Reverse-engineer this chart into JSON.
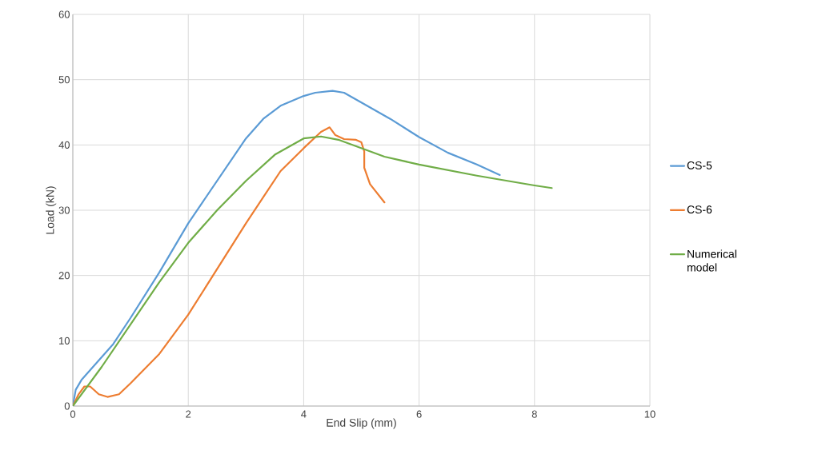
{
  "chart_data": {
    "type": "line",
    "xlabel": "End Slip (mm)",
    "ylabel": "Load (kN)",
    "xlim": [
      0,
      10
    ],
    "xticks": [
      0,
      2,
      4,
      6,
      8,
      10
    ],
    "ylim": [
      0,
      60
    ],
    "yticks": [
      0,
      10,
      20,
      30,
      40,
      50,
      60
    ],
    "grid": true,
    "legend": "right",
    "marker": "none",
    "line_style": "solid",
    "series": [
      {
        "name": "CS-5",
        "color": "#5b9bd5",
        "x": [
          0,
          0.05,
          0.15,
          0.5,
          0.7,
          1,
          1.5,
          2,
          2.5,
          3,
          3.3,
          3.6,
          4,
          4.2,
          4.5,
          4.7,
          5,
          5.5,
          6,
          6.5,
          7,
          7.4
        ],
        "values": [
          0,
          2.5,
          4,
          7.5,
          9.5,
          13.5,
          20.5,
          28,
          34.5,
          41,
          44,
          46,
          47.5,
          48,
          48.3,
          48,
          46.5,
          44,
          41.2,
          38.8,
          37,
          35.4
        ]
      },
      {
        "name": "CS-6",
        "color": "#ed7d31",
        "x": [
          0,
          0.1,
          0.2,
          0.3,
          0.45,
          0.6,
          0.8,
          1,
          1.5,
          2,
          2.5,
          3,
          3.3,
          3.6,
          4,
          4.3,
          4.45,
          4.55,
          4.7,
          4.9,
          5.0,
          5.05,
          5.05,
          5.15,
          5.4
        ],
        "values": [
          0,
          1.8,
          3,
          3,
          1.8,
          1.4,
          1.8,
          3.5,
          8,
          14,
          21,
          28,
          32,
          36,
          39.5,
          42,
          42.7,
          41.5,
          40.9,
          40.8,
          40.4,
          39,
          36.5,
          34,
          31.2
        ]
      },
      {
        "name": "Numerical model",
        "color": "#70ad47",
        "x": [
          0,
          0.5,
          1,
          1.5,
          2,
          2.5,
          3,
          3.5,
          4,
          4.3,
          4.6,
          5,
          5.4,
          6,
          7,
          8,
          8.3
        ],
        "values": [
          0,
          6,
          12.5,
          19,
          25,
          30,
          34.5,
          38.5,
          41,
          41.3,
          40.8,
          39.5,
          38.2,
          37,
          35.3,
          33.8,
          33.4
        ]
      }
    ]
  }
}
